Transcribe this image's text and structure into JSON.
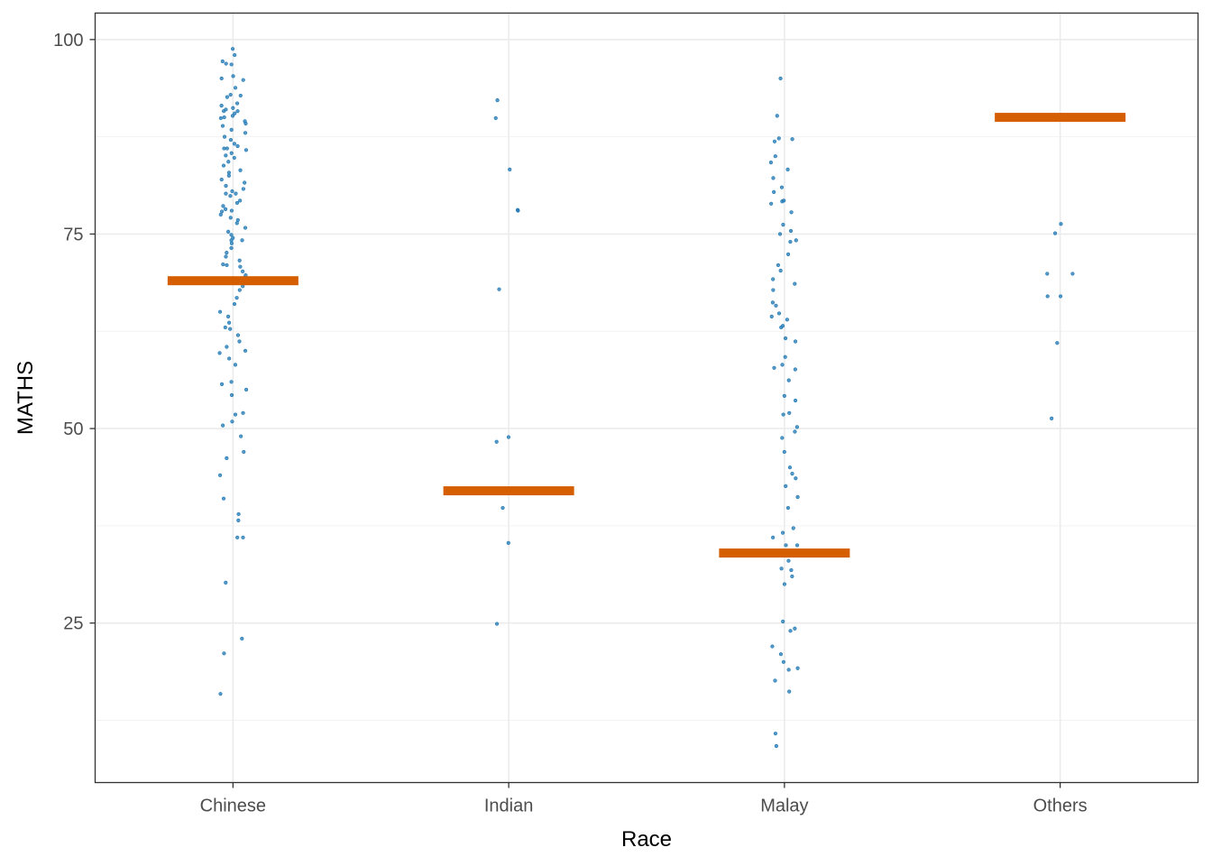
{
  "chart_data": {
    "type": "scatter",
    "title": "",
    "xlabel": "Race",
    "ylabel": "MATHS",
    "categories": [
      "Chinese",
      "Indian",
      "Malay",
      "Others"
    ],
    "ylim": [
      4.5,
      103.4
    ],
    "yticks": [
      25,
      50,
      75,
      100
    ],
    "ytick_labels": [
      "25",
      "50",
      "75",
      "100"
    ],
    "grid": true,
    "colors": {
      "points": "#1f78b4",
      "summary": "#d55e00",
      "grid": "#ebebeb",
      "panel_border": "#333333"
    },
    "summary_values": [
      69.0,
      42.0,
      34.0,
      90.0
    ],
    "points": {
      "Chinese": [
        98.8,
        98.0,
        97.2,
        96.9,
        96.8,
        95.3,
        95.0,
        94.8,
        93.8,
        92.9,
        92.6,
        92.8,
        91.8,
        91.5,
        91.2,
        91.0,
        90.8,
        90.8,
        90.5,
        90.2,
        90.0,
        89.9,
        89.5,
        89.2,
        88.9,
        88.4,
        88.0,
        87.5,
        87.1,
        86.6,
        86.3,
        86.0,
        86.0,
        85.8,
        85.4,
        85.1,
        84.8,
        84.3,
        83.8,
        83.2,
        82.9,
        82.5,
        82.0,
        81.6,
        81.2,
        80.8,
        80.5,
        80.2,
        80.2,
        79.9,
        79.3,
        79.0,
        78.6,
        78.2,
        78.0,
        77.9,
        77.5,
        77.1,
        76.8,
        76.4,
        75.8,
        75.3,
        74.9,
        74.5,
        74.2,
        74.2,
        73.8,
        73.2,
        72.6,
        72.1,
        71.6,
        71.1,
        71.0,
        70.8,
        70.2,
        69.7,
        69.4,
        68.3,
        67.8,
        66.8,
        66.0,
        65.0,
        64.4,
        63.6,
        63.0,
        62.8,
        62.0,
        61.2,
        60.5,
        60.0,
        59.7,
        59.0,
        58.2,
        56.0,
        55.7,
        55.0,
        54.3,
        52.0,
        51.8,
        50.9,
        50.4,
        49.0,
        47.0,
        46.2,
        44.0,
        41.0,
        39.0,
        38.2,
        36.0,
        36.0,
        30.2,
        23.0,
        21.1,
        15.9
      ],
      "Indian": [
        92.2,
        89.9,
        83.3,
        78.1,
        78.0,
        67.9,
        48.9,
        48.3,
        39.8,
        35.3,
        24.9
      ],
      "Malay": [
        95.0,
        90.2,
        87.3,
        87.2,
        86.9,
        85.0,
        84.2,
        83.3,
        82.2,
        81.0,
        80.4,
        79.3,
        79.2,
        78.9,
        77.8,
        76.2,
        75.4,
        75.0,
        74.2,
        74.0,
        72.4,
        71.0,
        70.3,
        69.2,
        68.6,
        67.8,
        66.2,
        65.8,
        64.8,
        64.4,
        64.0,
        63.2,
        63.0,
        61.6,
        61.2,
        59.2,
        58.2,
        57.8,
        57.6,
        56.2,
        54.2,
        53.6,
        52.0,
        51.8,
        50.2,
        49.6,
        48.8,
        47.0,
        45.0,
        44.2,
        43.6,
        42.6,
        41.2,
        39.8,
        37.2,
        36.6,
        36.0,
        35.0,
        35.0,
        33.0,
        32.0,
        31.8,
        31.0,
        30.0,
        25.2,
        24.3,
        24.0,
        22.0,
        21.0,
        20.0,
        19.2,
        19.0,
        17.6,
        16.2,
        10.8,
        9.2
      ],
      "Others": [
        76.3,
        75.1,
        69.9,
        69.9,
        67.0,
        67.0,
        61.0,
        51.3
      ]
    }
  }
}
